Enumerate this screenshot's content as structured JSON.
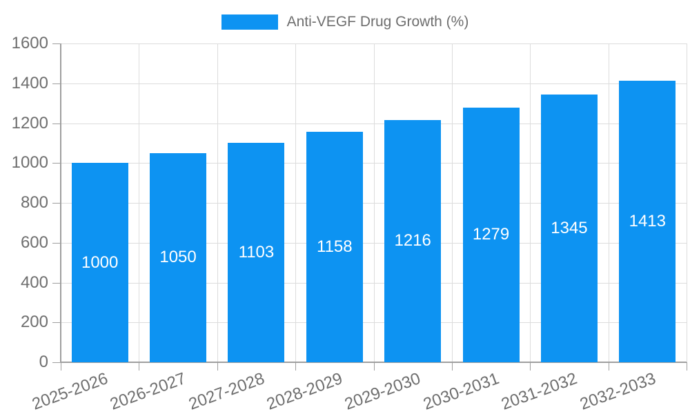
{
  "chart_data": {
    "type": "bar",
    "title": "Anti-VEGF Drug Growth (%)",
    "categories": [
      "2025-2026",
      "2026-2027",
      "2027-2028",
      "2028-2029",
      "2029-2030",
      "2030-2031",
      "2031-2032",
      "2032-2033"
    ],
    "series": [
      {
        "name": "Anti-VEGF Drug Growth (%)",
        "values": [
          1000,
          1050,
          1103,
          1158,
          1216,
          1279,
          1345,
          1413
        ]
      }
    ],
    "xlabel": "",
    "ylabel": "",
    "ylim": [
      0,
      1600
    ],
    "yticks": [
      0,
      200,
      400,
      600,
      800,
      1000,
      1200,
      1400,
      1600
    ],
    "grid": true,
    "legend_position": "top",
    "value_labels_shown": true,
    "x_label_rotation_deg": -20,
    "colors": {
      "bar": "#0d93f2",
      "value_label": "#ffffff",
      "axis_text": "#6e6e6e",
      "grid_line": "#dcdcdc",
      "axis_line": "#9e9e9e",
      "background": "#ffffff"
    }
  }
}
